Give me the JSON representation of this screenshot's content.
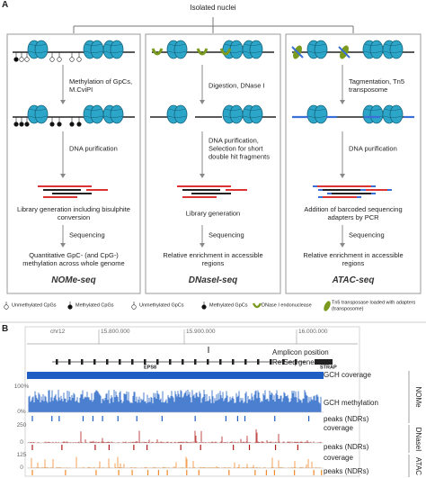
{
  "panel_a": {
    "label": "A",
    "source": "Isolated nuclei",
    "columns": [
      {
        "title": "NOMe-seq",
        "steps": [
          "Methylation of GpCs, M.CviPI",
          "DNA purification",
          "Library generation including bisulphite conversion",
          "Sequencing",
          "Quantitative GpC- (and CpG-) methylation across whole genome"
        ]
      },
      {
        "title": "DNaseI-seq",
        "steps": [
          "Digestion, DNase I",
          "DNA purification, Selection for short double hit fragments",
          "Library generation",
          "Sequencing",
          "Relative enrichment in accessible regions"
        ]
      },
      {
        "title": "ATAC-seq",
        "steps": [
          "Tagmentation, Tn5 transposome",
          "DNA purification",
          "Addition of barcoded sequencing adapters by PCR",
          "Sequencing",
          "Relative enrichment in accessible regions"
        ]
      }
    ],
    "legend": [
      "Unmethylated CpGs",
      "Methylated CpGs",
      "Unmethylated GpCs",
      "Methylated GpCs",
      "DNase I endonuclease",
      "Tn5 transposase loaded with adapters (transposome)"
    ]
  },
  "panel_b": {
    "label": "B",
    "chromosome": "chr12",
    "positions": [
      "15.800.000",
      "15.900.000",
      "16.000.000"
    ],
    "genes": [
      "EPS8",
      "STRAP"
    ],
    "tracks": [
      "Amplicon position",
      "RefSeq genes",
      "GCH coverage",
      "GCH methylation",
      "peaks (NDRs)",
      "coverage",
      "peaks (NDRs)",
      "coverage",
      "peaks (NDRs)"
    ],
    "scales": [
      [
        "100%",
        "0%"
      ],
      [
        "250",
        "0"
      ],
      [
        "125",
        "0"
      ]
    ],
    "groups": [
      "NOMe",
      "DNaseI",
      "ATAC"
    ]
  }
}
